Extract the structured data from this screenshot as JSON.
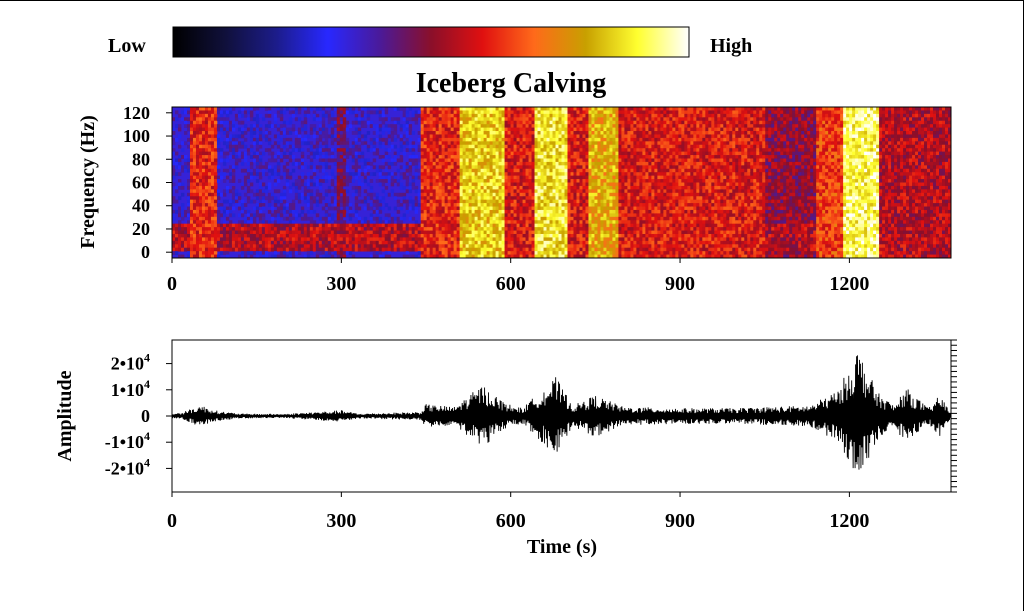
{
  "colorbar": {
    "low_label": "Low",
    "high_label": "High",
    "stops": [
      "#000000",
      "#10103a",
      "#1c1c8a",
      "#2828ff",
      "#4a1a9a",
      "#8a0f2a",
      "#e01010",
      "#ff6a1a",
      "#c8a000",
      "#ffff30",
      "#ffffff"
    ]
  },
  "chart_data": [
    {
      "type": "heatmap",
      "title": "Iceberg Calving",
      "xlabel": "",
      "ylabel": "Frequency (Hz)",
      "xlim": [
        0,
        1380
      ],
      "ylim": [
        -5,
        125
      ],
      "x_ticks": [
        0,
        300,
        600,
        900,
        1200
      ],
      "y_ticks": [
        0,
        20,
        40,
        60,
        80,
        100,
        120
      ],
      "energy_bands": [
        {
          "x_start": 30,
          "x_end": 80,
          "level": 0.62
        },
        {
          "x_start": 290,
          "x_end": 310,
          "level": 0.45
        },
        {
          "x_start": 440,
          "x_end": 510,
          "level": 0.62
        },
        {
          "x_start": 510,
          "x_end": 590,
          "level": 0.85
        },
        {
          "x_start": 590,
          "x_end": 640,
          "level": 0.6
        },
        {
          "x_start": 640,
          "x_end": 700,
          "level": 0.88
        },
        {
          "x_start": 700,
          "x_end": 740,
          "level": 0.6
        },
        {
          "x_start": 740,
          "x_end": 790,
          "level": 0.8
        },
        {
          "x_start": 790,
          "x_end": 1050,
          "level": 0.6
        },
        {
          "x_start": 1050,
          "x_end": 1140,
          "level": 0.5
        },
        {
          "x_start": 1140,
          "x_end": 1190,
          "level": 0.65
        },
        {
          "x_start": 1190,
          "x_end": 1250,
          "level": 0.92
        },
        {
          "x_start": 1250,
          "x_end": 1380,
          "level": 0.55
        }
      ],
      "low_freq_band": {
        "y_start": 0,
        "y_end": 25,
        "level": 0.55
      }
    },
    {
      "type": "line",
      "title": "",
      "xlabel": "Time (s)",
      "ylabel": "Amplitude",
      "xlim": [
        0,
        1380
      ],
      "ylim": [
        -29000,
        29000
      ],
      "x_ticks": [
        0,
        300,
        600,
        900,
        1200
      ],
      "y_ticks": [
        {
          "value": 20000,
          "mantissa": "2•10",
          "exp": "4"
        },
        {
          "value": 10000,
          "mantissa": "1•10",
          "exp": "4"
        },
        {
          "value": 0,
          "mantissa": "0",
          "exp": ""
        },
        {
          "value": -10000,
          "mantissa": "-1•10",
          "exp": "4"
        },
        {
          "value": -20000,
          "mantissa": "-2•10",
          "exp": "4"
        }
      ],
      "envelope": [
        {
          "t": 0,
          "a": 900
        },
        {
          "t": 20,
          "a": 1500
        },
        {
          "t": 50,
          "a": 4200
        },
        {
          "t": 80,
          "a": 2000
        },
        {
          "t": 120,
          "a": 900
        },
        {
          "t": 200,
          "a": 800
        },
        {
          "t": 300,
          "a": 2200
        },
        {
          "t": 330,
          "a": 900
        },
        {
          "t": 440,
          "a": 1600
        },
        {
          "t": 450,
          "a": 4500
        },
        {
          "t": 500,
          "a": 3500
        },
        {
          "t": 550,
          "a": 12000
        },
        {
          "t": 590,
          "a": 5000
        },
        {
          "t": 620,
          "a": 3000
        },
        {
          "t": 680,
          "a": 15000
        },
        {
          "t": 710,
          "a": 4000
        },
        {
          "t": 750,
          "a": 8000
        },
        {
          "t": 800,
          "a": 3500
        },
        {
          "t": 900,
          "a": 3000
        },
        {
          "t": 1000,
          "a": 3000
        },
        {
          "t": 1050,
          "a": 3500
        },
        {
          "t": 1130,
          "a": 4000
        },
        {
          "t": 1180,
          "a": 10000
        },
        {
          "t": 1215,
          "a": 26000
        },
        {
          "t": 1250,
          "a": 9000
        },
        {
          "t": 1280,
          "a": 4000
        },
        {
          "t": 1300,
          "a": 11000
        },
        {
          "t": 1340,
          "a": 3000
        },
        {
          "t": 1360,
          "a": 8000
        },
        {
          "t": 1380,
          "a": 1500
        }
      ]
    }
  ]
}
